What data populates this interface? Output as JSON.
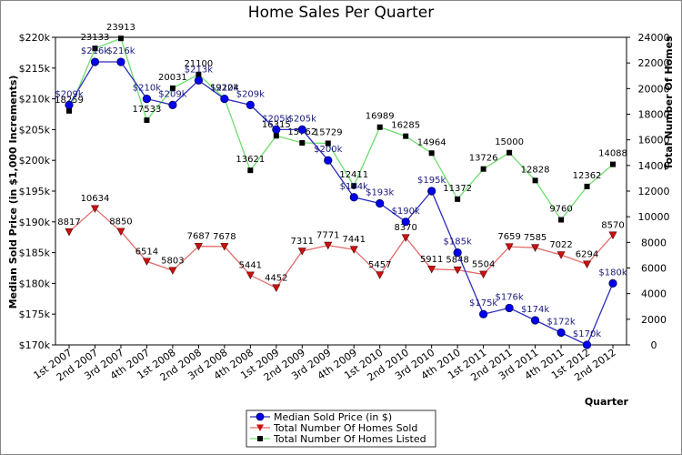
{
  "chart_data": {
    "type": "line",
    "title": "Home Sales Per Quarter",
    "xlabel": "Quarter",
    "ylabel_left": "Median Sold Price (in $1,000 Increments)",
    "ylabel_right": "Total Number Of Homes",
    "categories": [
      "1st 2007",
      "2nd 2007",
      "3rd 2007",
      "4th 2007",
      "1st 2008",
      "2nd 2008",
      "3rd 2008",
      "4th 2008",
      "1st 2009",
      "2nd 2009",
      "3rd 2009",
      "4th 2009",
      "1st 2010",
      "2nd 2010",
      "3rd 2010",
      "4th 2010",
      "1st 2011",
      "2nd 2011",
      "3rd 2011",
      "4th 2011",
      "1st 2012",
      "2nd 2012"
    ],
    "y_left": {
      "min": 170,
      "max": 220,
      "step": 5,
      "prefix": "$",
      "suffix": "k"
    },
    "y_right": {
      "min": 0,
      "max": 24000,
      "step": 2000
    },
    "grid": false,
    "legend_position": "bottom-center",
    "series": [
      {
        "name": "Median Sold Price (in $)",
        "axis": "left",
        "color": "#2d2dbb",
        "marker": "circle",
        "marker_color": "#0000ee",
        "values": [
          209,
          216,
          216,
          210,
          209,
          213,
          210,
          209,
          205,
          205,
          200,
          194,
          193,
          190,
          195,
          185,
          175,
          176,
          174,
          172,
          170,
          180
        ],
        "labels": [
          "$209k",
          "$216k",
          "$216k",
          "$210k",
          "$209k",
          "$213k",
          "$210k",
          "$209k",
          "$205k",
          "$205k",
          "$200k",
          "$194k",
          "$193k",
          "$190k",
          "$195k",
          "$185k",
          "$175k",
          "$176k",
          "$174k",
          "$172k",
          "$170k",
          "$180k"
        ]
      },
      {
        "name": "Total Number Of Homes Sold",
        "axis": "right",
        "color": "#e36b6b",
        "marker": "triangle-down",
        "marker_color": "#cc1111",
        "values": [
          8817,
          10634,
          8850,
          6514,
          5803,
          7687,
          7678,
          5441,
          4452,
          7311,
          7771,
          7441,
          5457,
          8370,
          5911,
          5848,
          5504,
          7659,
          7585,
          7022,
          6294,
          8570
        ]
      },
      {
        "name": "Total Number Of Homes Listed",
        "axis": "right",
        "color": "#6ddd6d",
        "marker": "square",
        "marker_color": "#000000",
        "values": [
          18259,
          23133,
          23913,
          17533,
          20031,
          21100,
          19224,
          13621,
          16315,
          15762,
          15729,
          12411,
          16989,
          16285,
          14964,
          11372,
          13726,
          15000,
          12828,
          9760,
          12362,
          14088
        ]
      }
    ]
  }
}
